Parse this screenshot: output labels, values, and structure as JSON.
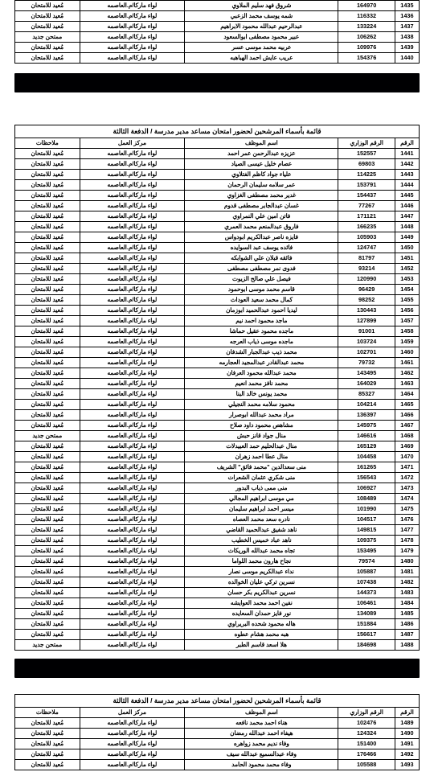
{
  "caption": "قائمة بأسماء المرشحين لحضور امتحان مساعد مدير مدرسة / الدفعة الثالثة",
  "headers": {
    "seq": "الرقم",
    "num": "الرقم الوزاري",
    "name": "اسم الموظف",
    "loc": "مركز العمل",
    "note": "ملاحظات"
  },
  "loc_default": "لواء ماركا/م.العاصمه",
  "note_default": "مُعيد للامتحان",
  "note_new": "ممتحن جديد",
  "t1": [
    {
      "seq": "1435",
      "num": "164970",
      "name": "شروق فهد سليم الملاوي",
      "note": ""
    },
    {
      "seq": "1436",
      "num": "116332",
      "name": "شمه يوسف محمد الزعبي",
      "note": ""
    },
    {
      "seq": "1437",
      "num": "133224",
      "name": "عبدالرحيم عبدالله محمود الابراهيم",
      "note": ""
    },
    {
      "seq": "1438",
      "num": "106262",
      "name": "عبير محمود مصطفى ابوالسعود",
      "note": "new"
    },
    {
      "seq": "1439",
      "num": "109976",
      "name": "عربيه محمد موسى عسر",
      "note": ""
    },
    {
      "seq": "1440",
      "num": "154376",
      "name": "عريب عايش احمد الهباهبه",
      "note": ""
    }
  ],
  "t2": [
    {
      "seq": "1441",
      "num": "152557",
      "name": "عزيزه عبدالرحمن عمر احمد",
      "note": ""
    },
    {
      "seq": "1442",
      "num": "69803",
      "name": "عصام خليل عيسى الصياد",
      "note": ""
    },
    {
      "seq": "1443",
      "num": "114225",
      "name": "علياء جواد كاظم الفتلاوي",
      "note": ""
    },
    {
      "seq": "1444",
      "num": "153791",
      "name": "عمر سلامه سليمان الرحمان",
      "note": ""
    },
    {
      "seq": "1445",
      "num": "154437",
      "name": "غدير محمد مصطفى الغزاوي",
      "note": ""
    },
    {
      "seq": "1446",
      "num": "77267",
      "name": "غسان عبدالجابر مصطفى قدوم",
      "note": ""
    },
    {
      "seq": "1447",
      "num": "171121",
      "name": "فاتن امين علي النمراوي",
      "note": ""
    },
    {
      "seq": "1448",
      "num": "166235",
      "name": "فاروق عبدالمنعم محمد العمري",
      "note": ""
    },
    {
      "seq": "1449",
      "num": "105903",
      "name": "فايزه ناصر عبدالكريم ابودواس",
      "note": ""
    },
    {
      "seq": "1450",
      "num": "124747",
      "name": "فائده يوسف عبد السوايده",
      "note": ""
    },
    {
      "seq": "1451",
      "num": "81797",
      "name": "فائقه قبلان علي الشوابكه",
      "note": ""
    },
    {
      "seq": "1452",
      "num": "93214",
      "name": "فدوى نمر مصطفى مصطفى",
      "note": ""
    },
    {
      "seq": "1453",
      "num": "120990",
      "name": "فيصل علي صالح الزيوت",
      "note": ""
    },
    {
      "seq": "1454",
      "num": "96429",
      "name": "قاسم محمد موسى ابوحمود",
      "note": ""
    },
    {
      "seq": "1455",
      "num": "98252",
      "name": "كمال محمد سعيد العودات",
      "note": ""
    },
    {
      "seq": "1456",
      "num": "130443",
      "name": "ليديا احمود عبدالحميد ابوزمان",
      "note": ""
    },
    {
      "seq": "1457",
      "num": "127899",
      "name": "ماجد محمود احمد نيم",
      "note": ""
    },
    {
      "seq": "1458",
      "num": "91001",
      "name": "ماجده محمود عقيل حماشا",
      "note": ""
    },
    {
      "seq": "1459",
      "num": "103724",
      "name": "ماجده موسى ذياب العرجه",
      "note": ""
    },
    {
      "seq": "1460",
      "num": "102701",
      "name": "محمد ذيب عبدالجبار الشدفان",
      "note": ""
    },
    {
      "seq": "1461",
      "num": "79732",
      "name": "محمد عبدالقادر عبدالمجيد العجارمه",
      "note": ""
    },
    {
      "seq": "1462",
      "num": "143495",
      "name": "محمد عبدالله محمود العرفان",
      "note": ""
    },
    {
      "seq": "1463",
      "num": "164029",
      "name": "محمد نافز محمد انعيم",
      "note": ""
    },
    {
      "seq": "1464",
      "num": "85327",
      "name": "محمد يونس خالد البنا",
      "note": ""
    },
    {
      "seq": "1465",
      "num": "104214",
      "name": "محمود سلامه محمد النجيلي",
      "note": ""
    },
    {
      "seq": "1466",
      "num": "136397",
      "name": "مراد محمد عبدالله ابوصرار",
      "note": ""
    },
    {
      "seq": "1467",
      "num": "145975",
      "name": "مشاهص محمود داود صلاح",
      "note": ""
    },
    {
      "seq": "1468",
      "num": "146616",
      "name": "منال جواد قانز حبش",
      "note": "new"
    },
    {
      "seq": "1469",
      "num": "165129",
      "name": "منال عبدالحليم حمد العبيدلات",
      "note": ""
    },
    {
      "seq": "1470",
      "num": "104458",
      "name": "منال عطا احمد زهران",
      "note": ""
    },
    {
      "seq": "1471",
      "num": "161265",
      "name": "منى سعدالدين \"محمد فائق\" الشريف",
      "note": ""
    },
    {
      "seq": "1472",
      "num": "156543",
      "name": "منى شكري عثمان الشعرات",
      "note": ""
    },
    {
      "seq": "1473",
      "num": "106927",
      "name": "منى ممى ذياب البدور",
      "note": ""
    },
    {
      "seq": "1474",
      "num": "108489",
      "name": "مي موسى ابراهيم المجالي",
      "note": ""
    },
    {
      "seq": "1475",
      "num": "101990",
      "name": "ميسر احمد ابراهيم سليمان",
      "note": ""
    },
    {
      "seq": "1476",
      "num": "104517",
      "name": "نادره سعد محمد العصاه",
      "note": ""
    },
    {
      "seq": "1477",
      "num": "149815",
      "name": "ناهد شفيق عبدالحميد القاضي",
      "note": ""
    },
    {
      "seq": "1478",
      "num": "109375",
      "name": "ناهد عباد خميس الخطيب",
      "note": ""
    },
    {
      "seq": "1479",
      "num": "153495",
      "name": "تجاه محمد عبدالله الوريكات",
      "note": ""
    },
    {
      "seq": "1480",
      "num": "79574",
      "name": "نجاح هارون محمد اللواما",
      "note": ""
    },
    {
      "seq": "1481",
      "num": "105887",
      "name": "نداء عبدالكريم موسى نصار",
      "note": ""
    },
    {
      "seq": "1482",
      "num": "107438",
      "name": "نسرين تركي عليان الخوالده",
      "note": ""
    },
    {
      "seq": "1483",
      "num": "144373",
      "name": "نسرين عبدالكريم بكر حسان",
      "note": ""
    },
    {
      "seq": "1484",
      "num": "106461",
      "name": "نفين احمد محمد العوايشه",
      "note": ""
    },
    {
      "seq": "1485",
      "num": "134089",
      "name": "نور فايز حمدان السعايده",
      "note": ""
    },
    {
      "seq": "1486",
      "num": "151884",
      "name": "هاله محمود شحده البريراوي",
      "note": ""
    },
    {
      "seq": "1487",
      "num": "156617",
      "name": "هبه محمد هشام عطوه",
      "note": ""
    },
    {
      "seq": "1488",
      "num": "184698",
      "name": "هلا اسعد قاسم الطبر",
      "note": "new"
    }
  ],
  "t3": [
    {
      "seq": "1489",
      "num": "102476",
      "name": "هناء احمد محمد نافعه",
      "note": ""
    },
    {
      "seq": "1490",
      "num": "124324",
      "name": "هيفاء احمد عبدالله رمضان",
      "note": ""
    },
    {
      "seq": "1491",
      "num": "151400",
      "name": "وفاء نديم محمد زواهره",
      "note": ""
    },
    {
      "seq": "1492",
      "num": "176466",
      "name": "وفاء عبدالسميع عبدالله سيف",
      "note": ""
    },
    {
      "seq": "1493",
      "num": "105588",
      "name": "وفاء محمد محمود الحامد",
      "note": ""
    }
  ]
}
